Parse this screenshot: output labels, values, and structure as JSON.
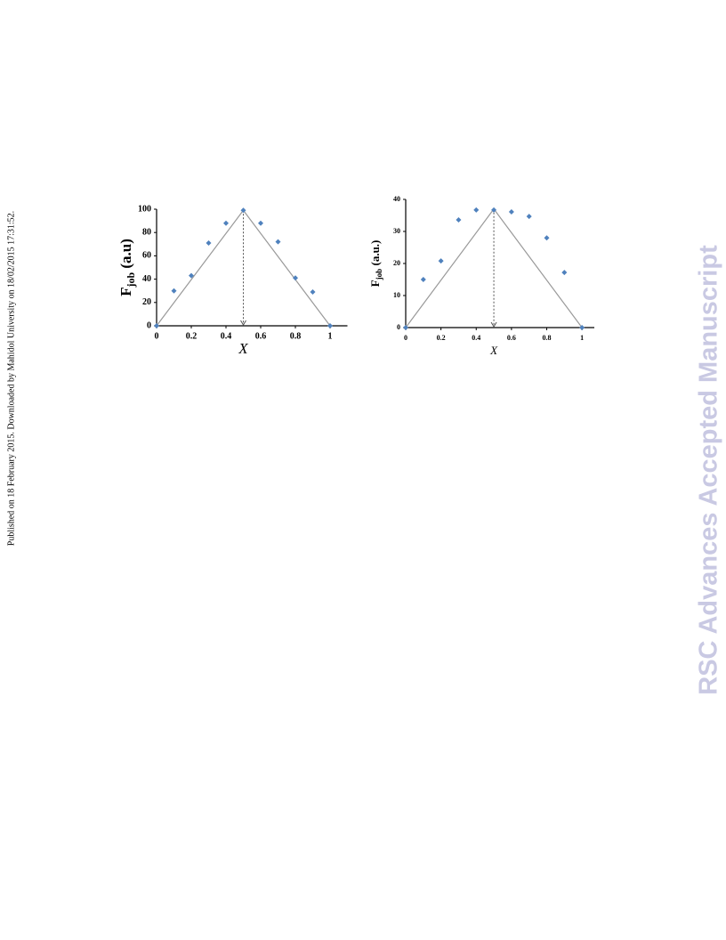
{
  "side_note": "Published on 18 February 2015. Downloaded by Mahidol University on 18/02/2015 17:31:52.",
  "watermark": "RSC Advances Accepted Manuscript",
  "chart_data": [
    {
      "type": "scatter",
      "xlabel": "X",
      "ylabel": {
        "main": "F",
        "sub": "job",
        "unit": " (a.u)"
      },
      "x": [
        0,
        0.1,
        0.2,
        0.3,
        0.4,
        0.5,
        0.6,
        0.7,
        0.8,
        0.9,
        1
      ],
      "values": [
        0,
        30,
        43,
        71,
        88,
        99,
        88,
        72,
        41,
        29,
        0
      ],
      "color": "#4f81bd",
      "guide_x": [
        0,
        0.5,
        1
      ],
      "guide_y": [
        0,
        99,
        0
      ],
      "marker_x": 0.5,
      "xlim": [
        0,
        1.1
      ],
      "xticks": [
        0,
        0.2,
        0.4,
        0.6,
        0.8,
        1
      ],
      "ylim": [
        0,
        100
      ],
      "yticks": [
        0,
        20,
        40,
        60,
        80,
        100
      ]
    },
    {
      "type": "scatter",
      "xlabel": "X",
      "ylabel": {
        "main": "F",
        "sub": "job",
        "unit": " (a.u.)"
      },
      "x": [
        0,
        0.1,
        0.2,
        0.3,
        0.4,
        0.5,
        0.6,
        0.7,
        0.8,
        0.9,
        1
      ],
      "values": [
        0,
        15,
        20.8,
        33.6,
        36.7,
        36.7,
        36.1,
        34.7,
        28,
        17.2,
        0
      ],
      "color": "#4f81bd",
      "guide_x": [
        0,
        0.5,
        1
      ],
      "guide_y": [
        0,
        37,
        0
      ],
      "marker_x": 0.5,
      "xlim": [
        0,
        1.07
      ],
      "xticks": [
        0,
        0.2,
        0.4,
        0.6,
        0.8,
        1
      ],
      "ylim": [
        0,
        40
      ],
      "yticks": [
        0,
        10,
        20,
        30,
        40
      ]
    }
  ]
}
